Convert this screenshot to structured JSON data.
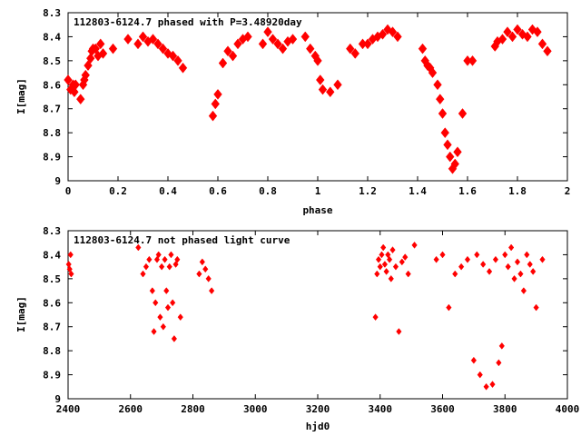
{
  "chart_data": [
    {
      "type": "scatter",
      "title": "112803-6124.7 phased with P=3.48920day",
      "xlabel": "phase",
      "ylabel": "I[mag]",
      "xlim": [
        0,
        2
      ],
      "ylim": [
        9,
        8.3
      ],
      "y_inverted": true,
      "grid": false,
      "marker_color": "#ff0000",
      "xticks": [
        "0",
        "0.2",
        "0.4",
        "0.6",
        "0.8",
        "1",
        "1.2",
        "1.4",
        "1.6",
        "1.8",
        "2"
      ],
      "yticks": [
        "8.3",
        "8.4",
        "8.5",
        "8.6",
        "8.7",
        "8.8",
        "8.9",
        "9"
      ],
      "x": [
        0.0,
        0.01,
        0.02,
        0.025,
        0.03,
        0.05,
        0.06,
        0.065,
        0.07,
        0.08,
        0.09,
        0.095,
        0.1,
        0.11,
        0.12,
        0.13,
        0.14,
        0.18,
        0.24,
        0.28,
        0.3,
        0.32,
        0.34,
        0.36,
        0.38,
        0.4,
        0.42,
        0.44,
        0.46,
        0.58,
        0.59,
        0.6,
        0.62,
        0.64,
        0.66,
        0.68,
        0.7,
        0.72,
        0.78,
        0.8,
        0.82,
        0.84,
        0.86,
        0.88,
        0.9,
        0.95,
        0.97,
        0.99,
        1.0,
        1.01,
        1.02,
        1.05,
        1.08,
        1.13,
        1.15,
        1.18,
        1.2,
        1.22,
        1.24,
        1.26,
        1.28,
        1.3,
        1.32,
        1.42,
        1.43,
        1.44,
        1.45,
        1.46,
        1.48,
        1.49,
        1.5,
        1.51,
        1.52,
        1.53,
        1.54,
        1.55,
        1.56,
        1.58,
        1.6,
        1.62,
        1.71,
        1.72,
        1.74,
        1.76,
        1.78,
        1.8,
        1.82,
        1.84,
        1.86,
        1.88,
        1.9,
        1.92
      ],
      "y": [
        8.58,
        8.62,
        8.6,
        8.63,
        8.6,
        8.66,
        8.6,
        8.58,
        8.56,
        8.52,
        8.49,
        8.46,
        8.45,
        8.45,
        8.48,
        8.43,
        8.47,
        8.45,
        8.41,
        8.43,
        8.4,
        8.42,
        8.41,
        8.43,
        8.45,
        8.47,
        8.48,
        8.5,
        8.53,
        8.73,
        8.68,
        8.64,
        8.51,
        8.46,
        8.48,
        8.43,
        8.41,
        8.4,
        8.43,
        8.38,
        8.41,
        8.43,
        8.45,
        8.42,
        8.41,
        8.4,
        8.45,
        8.48,
        8.5,
        8.58,
        8.62,
        8.63,
        8.6,
        8.45,
        8.47,
        8.43,
        8.43,
        8.41,
        8.4,
        8.39,
        8.37,
        8.38,
        8.4,
        8.45,
        8.5,
        8.52,
        8.53,
        8.55,
        8.6,
        8.66,
        8.72,
        8.8,
        8.85,
        8.9,
        8.95,
        8.93,
        8.88,
        8.72,
        8.5,
        8.5,
        8.44,
        8.42,
        8.41,
        8.38,
        8.4,
        8.37,
        8.39,
        8.4,
        8.37,
        8.38,
        8.43,
        8.46
      ]
    },
    {
      "type": "scatter",
      "title": "112803-6124.7 not phased light curve",
      "xlabel": "hjd0",
      "ylabel": "I[mag]",
      "xlim": [
        2400,
        4000
      ],
      "ylim": [
        9,
        8.3
      ],
      "y_inverted": true,
      "grid": false,
      "marker_color": "#ff0000",
      "xticks": [
        "2400",
        "2600",
        "2800",
        "3000",
        "3200",
        "3400",
        "3600",
        "3800",
        "4000"
      ],
      "yticks": [
        "8.3",
        "8.4",
        "8.5",
        "8.6",
        "8.7",
        "8.8",
        "8.9",
        "9"
      ],
      "x": [
        2402,
        2405,
        2408,
        2410,
        2625,
        2640,
        2650,
        2660,
        2670,
        2675,
        2680,
        2685,
        2690,
        2695,
        2700,
        2705,
        2710,
        2715,
        2720,
        2725,
        2730,
        2735,
        2740,
        2745,
        2750,
        2760,
        2820,
        2830,
        2840,
        2850,
        2860,
        3385,
        3390,
        3395,
        3400,
        3405,
        3410,
        3415,
        3420,
        3425,
        3430,
        3435,
        3440,
        3450,
        3460,
        3470,
        3480,
        3490,
        3510,
        3580,
        3600,
        3620,
        3640,
        3660,
        3680,
        3700,
        3710,
        3720,
        3730,
        3740,
        3750,
        3760,
        3770,
        3780,
        3790,
        3800,
        3810,
        3820,
        3830,
        3840,
        3850,
        3860,
        3870,
        3880,
        3890,
        3900,
        3920
      ],
      "y": [
        8.44,
        8.46,
        8.4,
        8.48,
        8.37,
        8.48,
        8.45,
        8.42,
        8.55,
        8.72,
        8.6,
        8.42,
        8.4,
        8.66,
        8.45,
        8.7,
        8.42,
        8.55,
        8.62,
        8.45,
        8.4,
        8.6,
        8.75,
        8.44,
        8.42,
        8.66,
        8.48,
        8.43,
        8.46,
        8.5,
        8.55,
        8.66,
        8.48,
        8.42,
        8.45,
        8.4,
        8.37,
        8.44,
        8.47,
        8.4,
        8.42,
        8.5,
        8.38,
        8.45,
        8.72,
        8.43,
        8.41,
        8.48,
        8.36,
        8.42,
        8.4,
        8.62,
        8.48,
        8.45,
        8.42,
        8.84,
        8.4,
        8.9,
        8.44,
        8.95,
        8.47,
        8.94,
        8.42,
        8.85,
        8.78,
        8.4,
        8.45,
        8.37,
        8.5,
        8.43,
        8.48,
        8.55,
        8.4,
        8.44,
        8.47,
        8.62,
        8.42
      ]
    }
  ]
}
